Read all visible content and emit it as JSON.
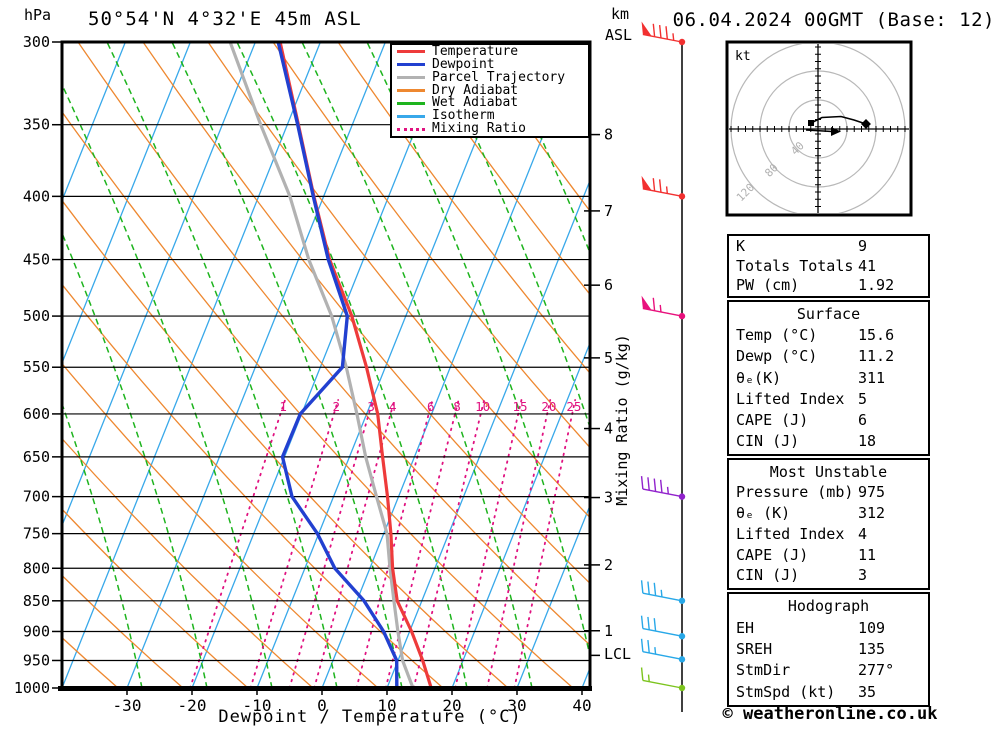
{
  "header": {
    "pressure_unit": "hPa",
    "title": "50°54'N 4°32'E 45m ASL",
    "altitude_unit_line1": "km",
    "altitude_unit_line2": "ASL",
    "datetime": "06.04.2024 00GMT (Base: 12)"
  },
  "legend": {
    "items": [
      {
        "label": "Temperature",
        "color": "#ee3b3b",
        "dash": "solid"
      },
      {
        "label": "Dewpoint",
        "color": "#2240d0",
        "dash": "solid"
      },
      {
        "label": "Parcel Trajectory",
        "color": "#b2b2b2",
        "dash": "solid"
      },
      {
        "label": "Dry Adiabat",
        "color": "#ee8830",
        "dash": "solid"
      },
      {
        "label": "Wet Adiabat",
        "color": "#1eb41e",
        "dash": "solid"
      },
      {
        "label": "Isotherm",
        "color": "#38a8ea",
        "dash": "solid"
      },
      {
        "label": "Mixing Ratio",
        "color": "#e01280",
        "dash": "dotted"
      }
    ]
  },
  "chart_data": {
    "type": "skewt_log_p_sounding",
    "title": "50°54'N 4°32'E 45m ASL",
    "pressure_axis": {
      "unit": "hPa",
      "scale": "log",
      "ticks": [
        300,
        350,
        400,
        450,
        500,
        550,
        600,
        650,
        700,
        750,
        800,
        850,
        900,
        950,
        1000
      ]
    },
    "temp_axis": {
      "unit": "°C",
      "label": "Dewpoint / Temperature (°C)",
      "ticks": [
        -30,
        -20,
        -10,
        0,
        10,
        20,
        30,
        40
      ],
      "skewed": true
    },
    "km_axis": {
      "ticks": [
        {
          "km": 8,
          "hPa": 356.5
        },
        {
          "km": 7,
          "hPa": 411
        },
        {
          "km": 6,
          "hPa": 472
        },
        {
          "km": 5,
          "hPa": 540.5
        },
        {
          "km": 4,
          "hPa": 616.6
        },
        {
          "km": 3,
          "hPa": 701.2
        },
        {
          "km": 2,
          "hPa": 795
        },
        {
          "km": 1,
          "hPa": 898.8
        }
      ],
      "lcl": {
        "label": "LCL",
        "hPa": 941
      }
    },
    "series": [
      {
        "name": "Temperature",
        "color": "#ee3b3b",
        "width": 3.2,
        "values_degC": [
          -46.2,
          -38.3,
          -31.5,
          -25.2,
          -18.3,
          -12.9,
          -8.3,
          -4.9,
          -1.7,
          1.1,
          3.5,
          6.2,
          10.3,
          13.8,
          16.8
        ]
      },
      {
        "name": "Dewpoint",
        "color": "#2240d0",
        "width": 3.4,
        "values_degC": [
          -46.5,
          -38.4,
          -31.6,
          -25.4,
          -19.0,
          -16.6,
          -20.2,
          -20.3,
          -16.4,
          -10.2,
          -5.4,
          1.1,
          6.0,
          9.8,
          11.5
        ]
      },
      {
        "name": "Parcel Trajectory",
        "color": "#b2b2b2",
        "width": 3.2,
        "values_degC": [
          -53.9,
          -44.1,
          -35.2,
          -28.4,
          -21.4,
          -16.0,
          -11.5,
          -7.5,
          -3.4,
          0.5,
          3.1,
          5.7,
          8.2,
          10.7,
          14.0
        ]
      }
    ],
    "grid": {
      "isotherms_degC": {
        "min": -70,
        "max": 40,
        "step": 10,
        "color": "#38a8ea"
      },
      "dry_adiabat_color": "#ee8830",
      "wet_adiabat_color": "#1eb41e",
      "mixing_ratio_lines": {
        "axis_label": "Mixing Ratio (g/kg)",
        "values_g_per_kg": [
          1,
          2,
          3,
          4,
          6,
          8,
          10,
          15,
          20,
          25
        ],
        "dewpoint_at_1000hPa_degC": [
          -20.3,
          -11.0,
          -5.0,
          -1.2,
          5.3,
          9.8,
          14.1,
          20.5,
          25.4,
          29.6
        ],
        "color": "#e01280"
      }
    },
    "wind_barbs": [
      {
        "hPa": 300,
        "speed_kt": 85,
        "color": "#f23030"
      },
      {
        "hPa": 400,
        "speed_kt": 75,
        "color": "#f23030"
      },
      {
        "hPa": 500,
        "speed_kt": 65,
        "color": "#e8117d"
      },
      {
        "hPa": 700,
        "speed_kt": 45,
        "color": "#9122cc"
      },
      {
        "hPa": 850,
        "speed_kt": 35,
        "color": "#28a8e8"
      },
      {
        "hPa": 908,
        "speed_kt": 30,
        "color": "#28a8e8"
      },
      {
        "hPa": 948,
        "speed_kt": 25,
        "color": "#28a8e8"
      },
      {
        "hPa": 1000,
        "speed_kt": 15,
        "color": "#7cc41e"
      }
    ]
  },
  "hodograph": {
    "unit": "kt",
    "rings_kt": [
      40,
      80,
      120
    ]
  },
  "tables": [
    {
      "name": "indices",
      "title": "",
      "rows": [
        [
          "K",
          "9"
        ],
        [
          "Totals Totals",
          "41"
        ],
        [
          "PW (cm)",
          "1.92"
        ]
      ]
    },
    {
      "name": "surface",
      "title": "Surface",
      "rows": [
        [
          "Temp (°C)",
          "15.6"
        ],
        [
          "Dewp (°C)",
          "11.2"
        ],
        [
          "θₑ(K)",
          "311"
        ],
        [
          "Lifted Index",
          "5"
        ],
        [
          "CAPE (J)",
          "6"
        ],
        [
          "CIN (J)",
          "18"
        ]
      ]
    },
    {
      "name": "most-unstable",
      "title": "Most Unstable",
      "rows": [
        [
          "Pressure (mb)",
          "975"
        ],
        [
          "θₑ (K)",
          "312"
        ],
        [
          "Lifted Index",
          "4"
        ],
        [
          "CAPE (J)",
          "11"
        ],
        [
          "CIN (J)",
          "3"
        ]
      ]
    },
    {
      "name": "hodograph-stats",
      "title": "Hodograph",
      "rows": [
        [
          "EH",
          "109"
        ],
        [
          "SREH",
          "135"
        ],
        [
          "StmDir",
          "277°"
        ],
        [
          "StmSpd (kt)",
          "35"
        ]
      ]
    }
  ],
  "footer": {
    "copyright": "© weatheronline.co.uk"
  }
}
